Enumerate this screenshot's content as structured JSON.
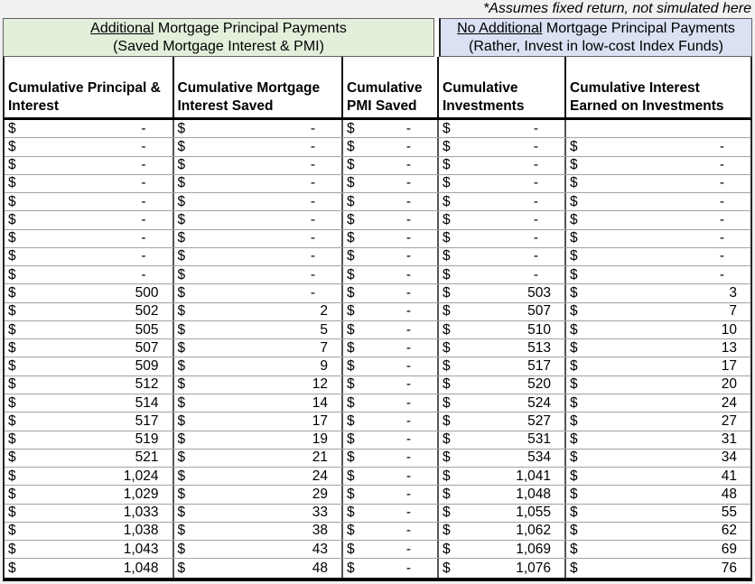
{
  "annotation": "*Assumes fixed return, not simulated here",
  "group_headers": [
    {
      "underlined": "Additional",
      "rest": " Mortgage Principal Payments",
      "line2": "(Saved Mortgage Interest & PMI)",
      "bg": "#E2EFDA"
    },
    {
      "underlined": "No Additional",
      "rest": " Mortgage Principal Payments",
      "line2": "(Rather, Invest in low-cost Index Funds)",
      "bg": "#D9E1F2"
    }
  ],
  "table": {
    "currency_symbol": "$",
    "zero_display": "-",
    "columns": [
      "Cumulative Principal & Interest",
      "Cumulative Mortgage Interest Saved",
      "Cumulative PMI Saved",
      "Cumulative Investments",
      "Cumulative Interest Earned on Investments"
    ],
    "rows": [
      [
        "-",
        "-",
        "-",
        "-",
        null
      ],
      [
        "-",
        "-",
        "-",
        "-",
        "-"
      ],
      [
        "-",
        "-",
        "-",
        "-",
        "-"
      ],
      [
        "-",
        "-",
        "-",
        "-",
        "-"
      ],
      [
        "-",
        "-",
        "-",
        "-",
        "-"
      ],
      [
        "-",
        "-",
        "-",
        "-",
        "-"
      ],
      [
        "-",
        "-",
        "-",
        "-",
        "-"
      ],
      [
        "-",
        "-",
        "-",
        "-",
        "-"
      ],
      [
        "-",
        "-",
        "-",
        "-",
        "-"
      ],
      [
        "500",
        "-",
        "-",
        "503",
        "3"
      ],
      [
        "502",
        "2",
        "-",
        "507",
        "7"
      ],
      [
        "505",
        "5",
        "-",
        "510",
        "10"
      ],
      [
        "507",
        "7",
        "-",
        "513",
        "13"
      ],
      [
        "509",
        "9",
        "-",
        "517",
        "17"
      ],
      [
        "512",
        "12",
        "-",
        "520",
        "20"
      ],
      [
        "514",
        "14",
        "-",
        "524",
        "24"
      ],
      [
        "517",
        "17",
        "-",
        "527",
        "27"
      ],
      [
        "519",
        "19",
        "-",
        "531",
        "31"
      ],
      [
        "521",
        "21",
        "-",
        "534",
        "34"
      ],
      [
        "1,024",
        "24",
        "-",
        "1,041",
        "41"
      ],
      [
        "1,029",
        "29",
        "-",
        "1,048",
        "48"
      ],
      [
        "1,033",
        "33",
        "-",
        "1,055",
        "55"
      ],
      [
        "1,038",
        "38",
        "-",
        "1,062",
        "62"
      ],
      [
        "1,043",
        "43",
        "-",
        "1,069",
        "69"
      ],
      [
        "1,048",
        "48",
        "-",
        "1,076",
        "76"
      ]
    ]
  },
  "colors": {
    "green_group_bg": "#E2EFDA",
    "blue_group_bg": "#D9E1F2",
    "page_bg": "#F1F1F1",
    "grid_horizontal": "#A2A2A2",
    "grid_vertical": "#545454",
    "heavy_border": "#000000"
  },
  "chart_data": {
    "type": "table",
    "title": "Additional vs No Additional Mortgage Principal Payments",
    "annotation": "*Assumes fixed return, not simulated here",
    "column_groups": [
      {
        "label": "Additional Mortgage Principal Payments (Saved Mortgage Interest & PMI)",
        "column_indexes": [
          0,
          1,
          2
        ]
      },
      {
        "label": "No Additional Mortgage Principal Payments (Rather, Invest in low-cost Index Funds)",
        "column_indexes": [
          3,
          4
        ]
      }
    ],
    "columns": [
      "Cumulative Principal & Interest",
      "Cumulative Mortgage Interest Saved",
      "Cumulative PMI Saved",
      "Cumulative Investments",
      "Cumulative Interest Earned on Investments"
    ],
    "rows": [
      [
        0,
        0,
        0,
        0,
        null
      ],
      [
        0,
        0,
        0,
        0,
        0
      ],
      [
        0,
        0,
        0,
        0,
        0
      ],
      [
        0,
        0,
        0,
        0,
        0
      ],
      [
        0,
        0,
        0,
        0,
        0
      ],
      [
        0,
        0,
        0,
        0,
        0
      ],
      [
        0,
        0,
        0,
        0,
        0
      ],
      [
        0,
        0,
        0,
        0,
        0
      ],
      [
        0,
        0,
        0,
        0,
        0
      ],
      [
        500,
        0,
        0,
        503,
        3
      ],
      [
        502,
        2,
        0,
        507,
        7
      ],
      [
        505,
        5,
        0,
        510,
        10
      ],
      [
        507,
        7,
        0,
        513,
        13
      ],
      [
        509,
        9,
        0,
        517,
        17
      ],
      [
        512,
        12,
        0,
        520,
        20
      ],
      [
        514,
        14,
        0,
        524,
        24
      ],
      [
        517,
        17,
        0,
        527,
        27
      ],
      [
        519,
        19,
        0,
        531,
        31
      ],
      [
        521,
        21,
        0,
        534,
        34
      ],
      [
        1024,
        24,
        0,
        1041,
        41
      ],
      [
        1029,
        29,
        0,
        1048,
        48
      ],
      [
        1033,
        33,
        0,
        1055,
        55
      ],
      [
        1038,
        38,
        0,
        1062,
        62
      ],
      [
        1043,
        43,
        0,
        1069,
        69
      ],
      [
        1048,
        48,
        0,
        1076,
        76
      ]
    ],
    "notes": "Dash (-) cells are accounting-format zeros; first row last column is blank."
  }
}
